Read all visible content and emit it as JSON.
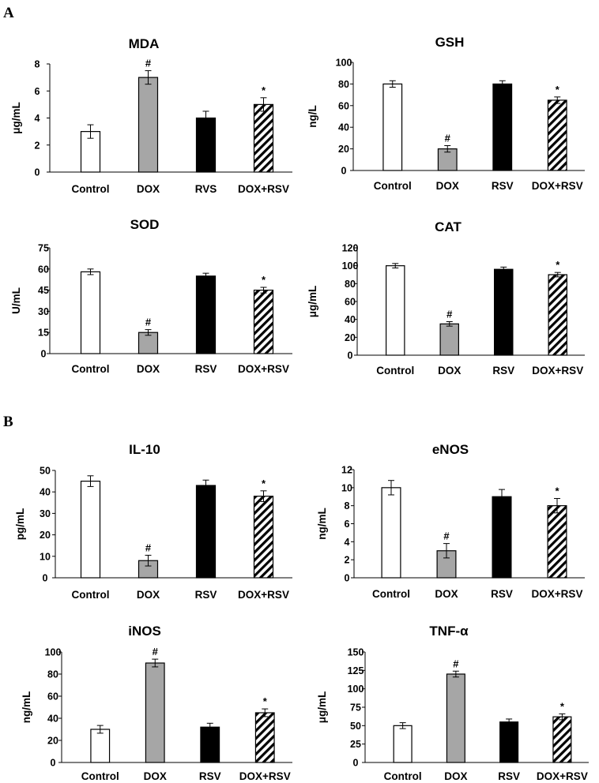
{
  "panels": [
    {
      "label": "A"
    },
    {
      "label": "B"
    }
  ],
  "chart_data": [
    {
      "type": "bar",
      "panel": "A",
      "title": "MDA",
      "xlabel": "",
      "ylabel": "μg/mL",
      "categories": [
        "Control",
        "DOX",
        "RVS",
        "DOX+RSV"
      ],
      "values": [
        3,
        7,
        4,
        5
      ],
      "errors": [
        0.5,
        0.5,
        0.5,
        0.5
      ],
      "annotations": [
        "",
        "#",
        "",
        "*"
      ],
      "ylim": [
        0,
        8
      ],
      "yticks": [
        0,
        2,
        4,
        6,
        8
      ],
      "fills": [
        "white",
        "gray",
        "black",
        "hatch"
      ]
    },
    {
      "type": "bar",
      "panel": "A",
      "title": "GSH",
      "xlabel": "",
      "ylabel": "ng/L",
      "categories": [
        "Control",
        "DOX",
        "RSV",
        "DOX+RSV"
      ],
      "values": [
        80,
        20,
        80,
        65
      ],
      "errors": [
        3,
        3,
        3,
        3
      ],
      "annotations": [
        "",
        "#",
        "",
        "*"
      ],
      "ylim": [
        0,
        100
      ],
      "yticks": [
        0,
        20,
        40,
        60,
        80,
        100
      ],
      "fills": [
        "white",
        "gray",
        "black",
        "hatch"
      ]
    },
    {
      "type": "bar",
      "panel": "A",
      "title": "SOD",
      "xlabel": "",
      "ylabel": "U/mL",
      "categories": [
        "Control",
        "DOX",
        "RSV",
        "DOX+RSV"
      ],
      "values": [
        58,
        15,
        55,
        45
      ],
      "errors": [
        2,
        2,
        2,
        2
      ],
      "annotations": [
        "",
        "#",
        "",
        "*"
      ],
      "ylim": [
        0,
        75
      ],
      "yticks": [
        0,
        15,
        30,
        45,
        60,
        75
      ],
      "fills": [
        "white",
        "gray",
        "black",
        "hatch"
      ]
    },
    {
      "type": "bar",
      "panel": "A",
      "title": "CAT",
      "xlabel": "",
      "ylabel": "μg/mL",
      "categories": [
        "Control",
        "DOX",
        "RSV",
        "DOX+RSV"
      ],
      "values": [
        100,
        35,
        96,
        90
      ],
      "errors": [
        2.5,
        2.5,
        2.5,
        2.5
      ],
      "annotations": [
        "",
        "#",
        "",
        "*"
      ],
      "ylim": [
        0,
        120
      ],
      "yticks": [
        0,
        20,
        40,
        60,
        80,
        100,
        120
      ],
      "fills": [
        "white",
        "gray",
        "black",
        "hatch"
      ]
    },
    {
      "type": "bar",
      "panel": "B",
      "title": "IL-10",
      "xlabel": "",
      "ylabel": "pg/mL",
      "categories": [
        "Control",
        "DOX",
        "RSV",
        "DOX+RSV"
      ],
      "values": [
        45,
        8,
        43,
        38
      ],
      "errors": [
        2.5,
        2.5,
        2.5,
        2.5
      ],
      "annotations": [
        "",
        "#",
        "",
        "*"
      ],
      "ylim": [
        0,
        50
      ],
      "yticks": [
        0,
        10,
        20,
        30,
        40,
        50
      ],
      "fills": [
        "white",
        "gray",
        "black",
        "hatch"
      ]
    },
    {
      "type": "bar",
      "panel": "B",
      "title": "eNOS",
      "xlabel": "",
      "ylabel": "ng/mL",
      "categories": [
        "Control",
        "DOX",
        "RSV",
        "DOX+RSV"
      ],
      "values": [
        10,
        3,
        9,
        8
      ],
      "errors": [
        0.8,
        0.8,
        0.8,
        0.8
      ],
      "annotations": [
        "",
        "#",
        "",
        "*"
      ],
      "ylim": [
        0,
        12
      ],
      "yticks": [
        0,
        2,
        4,
        6,
        8,
        10,
        12
      ],
      "fills": [
        "white",
        "gray",
        "black",
        "hatch"
      ]
    },
    {
      "type": "bar",
      "panel": "B",
      "title": "iNOS",
      "xlabel": "",
      "ylabel": "ng/mL",
      "categories": [
        "Control",
        "DOX",
        "RSV",
        "DOX+RSV"
      ],
      "values": [
        30,
        90,
        32,
        45
      ],
      "errors": [
        3.5,
        3.5,
        3.5,
        3.5
      ],
      "annotations": [
        "",
        "#",
        "",
        "*"
      ],
      "ylim": [
        0,
        100
      ],
      "yticks": [
        0,
        20,
        40,
        60,
        80,
        100
      ],
      "fills": [
        "white",
        "gray",
        "black",
        "hatch"
      ]
    },
    {
      "type": "bar",
      "panel": "B",
      "title": "TNF-α",
      "xlabel": "",
      "ylabel": "μg/mL",
      "categories": [
        "Control",
        "DOX",
        "RSV",
        "DOX+RSV"
      ],
      "values": [
        50,
        120,
        55,
        62
      ],
      "errors": [
        4,
        4,
        4,
        4
      ],
      "annotations": [
        "",
        "#",
        "",
        "*"
      ],
      "ylim": [
        0,
        150
      ],
      "yticks": [
        0,
        25,
        50,
        75,
        100,
        125,
        150
      ],
      "fills": [
        "white",
        "gray",
        "black",
        "hatch"
      ]
    }
  ]
}
